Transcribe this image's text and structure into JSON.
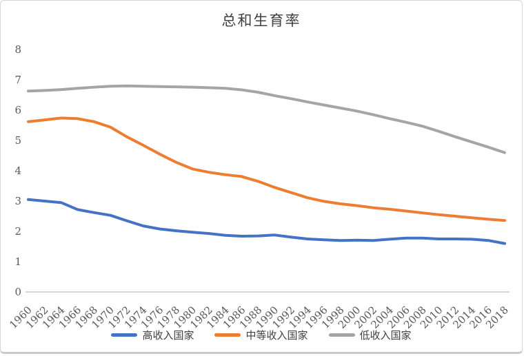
{
  "title": "总和生育率",
  "chart_data": {
    "type": "line",
    "title": "总和生育率",
    "xlabel": "",
    "ylabel": "",
    "grid": false,
    "legend_position": "bottom",
    "ylim": [
      0,
      8
    ],
    "y_ticks": [
      0,
      1,
      2,
      3,
      4,
      5,
      6,
      7,
      8
    ],
    "categories": [
      "1960",
      "1962",
      "1964",
      "1966",
      "1968",
      "1970",
      "1972",
      "1974",
      "1976",
      "1978",
      "1980",
      "1982",
      "1984",
      "1986",
      "1988",
      "1990",
      "1992",
      "1994",
      "1996",
      "1998",
      "2000",
      "2002",
      "2004",
      "2006",
      "2008",
      "2010",
      "2012",
      "2014",
      "2016",
      "2018"
    ],
    "series": [
      {
        "name": "高收入国家",
        "key": "high-income",
        "color": "#4472C4",
        "values": [
          3.05,
          3.0,
          2.95,
          2.72,
          2.62,
          2.53,
          2.35,
          2.18,
          2.08,
          2.02,
          1.97,
          1.93,
          1.87,
          1.84,
          1.85,
          1.88,
          1.81,
          1.75,
          1.72,
          1.7,
          1.71,
          1.7,
          1.74,
          1.78,
          1.78,
          1.75,
          1.75,
          1.74,
          1.7,
          1.6
        ]
      },
      {
        "name": "中等收入国家",
        "key": "middle-income",
        "color": "#ED7D31",
        "values": [
          5.62,
          5.68,
          5.74,
          5.72,
          5.62,
          5.44,
          5.12,
          4.84,
          4.55,
          4.28,
          4.06,
          3.95,
          3.87,
          3.81,
          3.65,
          3.45,
          3.28,
          3.11,
          2.99,
          2.91,
          2.85,
          2.78,
          2.73,
          2.67,
          2.61,
          2.55,
          2.5,
          2.45,
          2.4,
          2.36
        ]
      },
      {
        "name": "低收入国家",
        "key": "low-income",
        "color": "#A5A5A5",
        "values": [
          6.63,
          6.65,
          6.68,
          6.72,
          6.76,
          6.79,
          6.8,
          6.79,
          6.78,
          6.77,
          6.76,
          6.74,
          6.72,
          6.67,
          6.59,
          6.48,
          6.38,
          6.27,
          6.17,
          6.07,
          5.97,
          5.85,
          5.72,
          5.6,
          5.47,
          5.3,
          5.12,
          4.95,
          4.78,
          4.6
        ]
      }
    ]
  },
  "colors": {
    "axis_line": "#BFBFBF",
    "tick_label": "#595959",
    "title_text": "#404040",
    "frame_border": "#D6D6D6",
    "background": "#FFFFFF"
  }
}
